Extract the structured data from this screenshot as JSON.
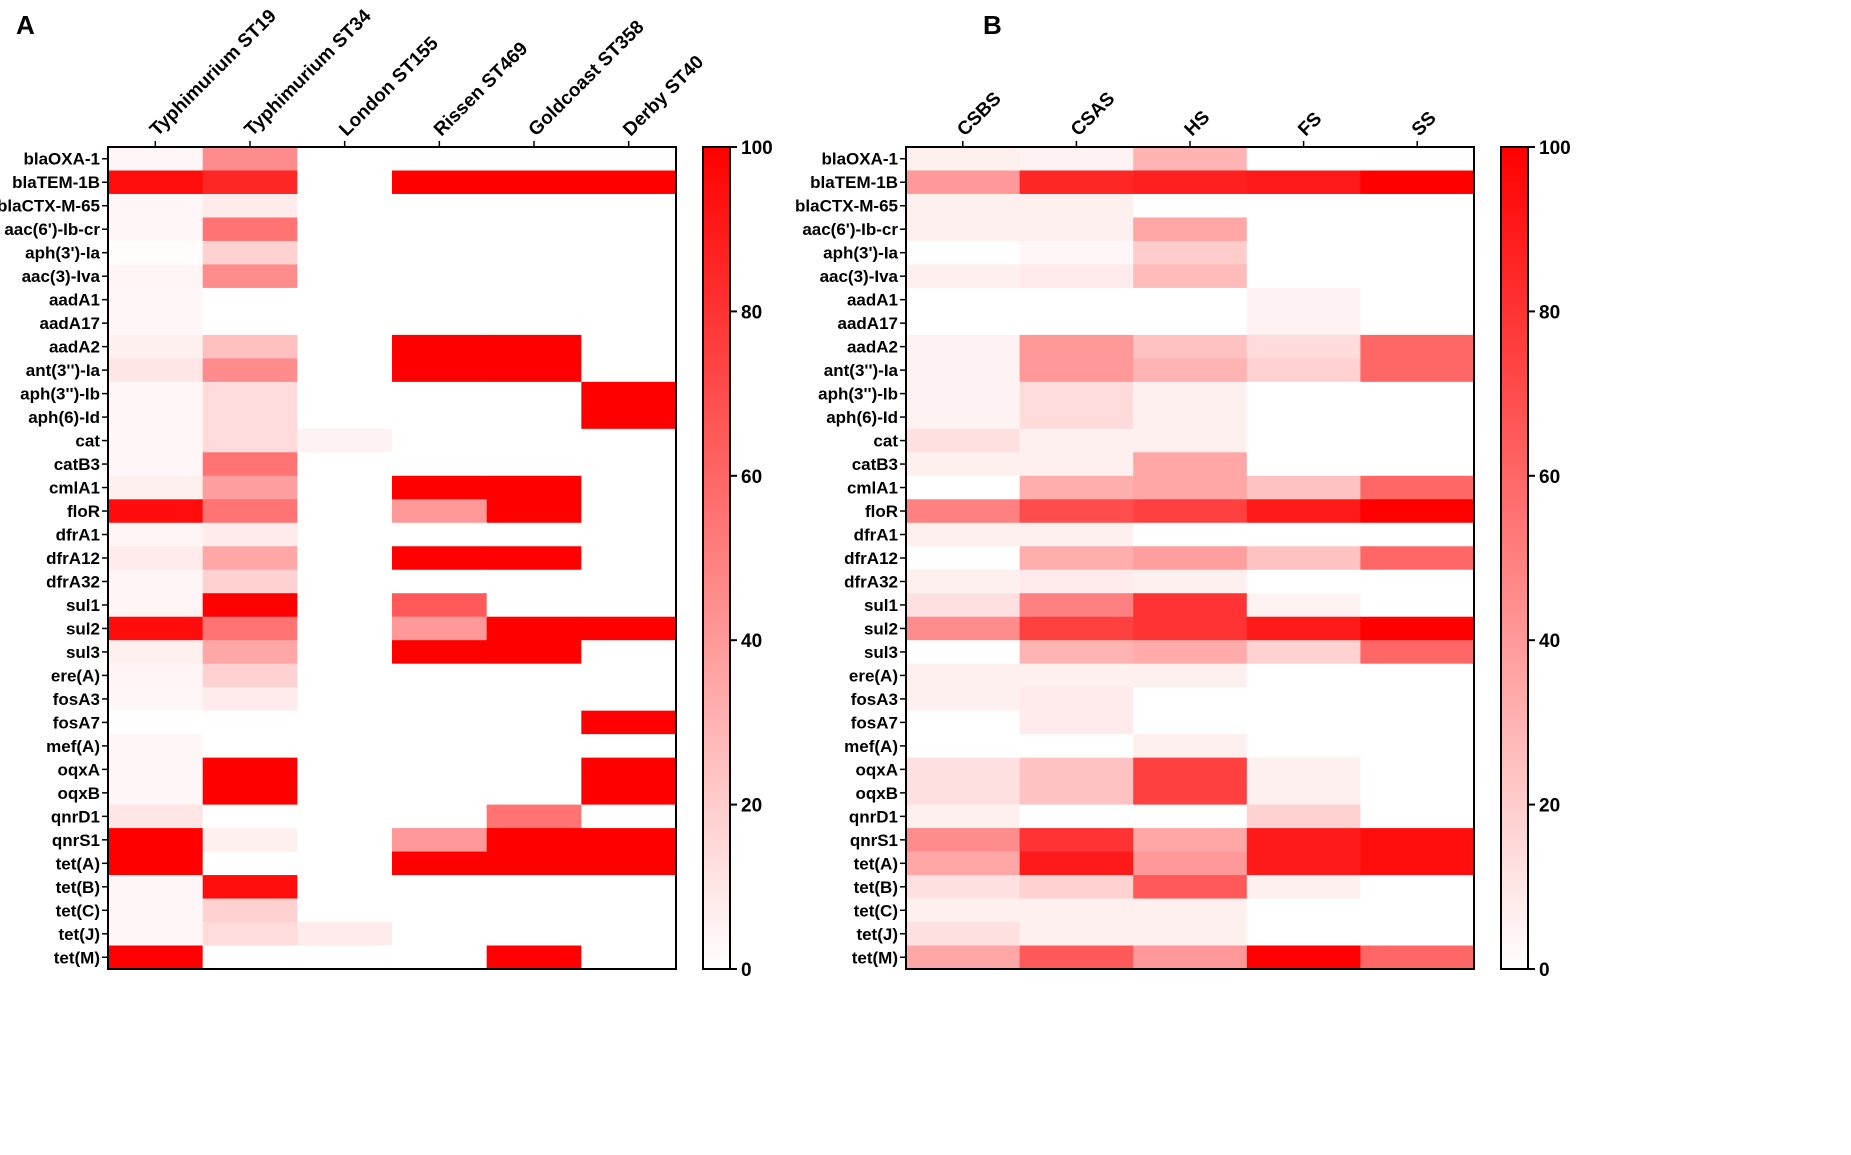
{
  "chart_data": [
    {
      "type": "heatmap",
      "panel_label": "A",
      "columns": [
        "Typhimurium ST19",
        "Typhimurium ST34",
        "London ST155",
        "Rissen ST469",
        "Goldcoast ST358",
        "Derby ST40"
      ],
      "rows": [
        "blaOXA-1",
        "blaTEM-1B",
        "blaCTX-M-65",
        "aac(6')-Ib-cr",
        "aph(3')-Ia",
        "aac(3)-Iva",
        "aadA1",
        "aadA17",
        "aadA2",
        "ant(3'')-Ia",
        "aph(3'')-Ib",
        "aph(6)-Id",
        "cat",
        "catB3",
        "cmlA1",
        "floR",
        "dfrA1",
        "dfrA12",
        "dfrA32",
        "sul1",
        "sul2",
        "sul3",
        "ere(A)",
        "fosA3",
        "fosA7",
        "mef(A)",
        "oqxA",
        "oqxB",
        "qnrD1",
        "qnrS1",
        "tet(A)",
        "tet(B)",
        "tet(C)",
        "tet(J)",
        "tet(M)"
      ],
      "values": [
        [
          3,
          45,
          0,
          0,
          0,
          0
        ],
        [
          95,
          85,
          0,
          100,
          100,
          100
        ],
        [
          3,
          8,
          0,
          0,
          0,
          0
        ],
        [
          3,
          55,
          0,
          0,
          0,
          0
        ],
        [
          1,
          18,
          0,
          0,
          0,
          0
        ],
        [
          4,
          45,
          0,
          0,
          0,
          0
        ],
        [
          3,
          0,
          0,
          0,
          0,
          0
        ],
        [
          3,
          0,
          0,
          0,
          0,
          0
        ],
        [
          6,
          25,
          0,
          100,
          100,
          0
        ],
        [
          10,
          45,
          0,
          100,
          100,
          0
        ],
        [
          3,
          14,
          0,
          0,
          0,
          100
        ],
        [
          3,
          14,
          0,
          0,
          0,
          100
        ],
        [
          3,
          14,
          5,
          0,
          0,
          0
        ],
        [
          3,
          55,
          0,
          0,
          0,
          0
        ],
        [
          6,
          38,
          0,
          100,
          100,
          0
        ],
        [
          95,
          55,
          0,
          40,
          100,
          0
        ],
        [
          4,
          8,
          0,
          0,
          0,
          0
        ],
        [
          8,
          35,
          0,
          100,
          100,
          0
        ],
        [
          4,
          18,
          0,
          0,
          0,
          0
        ],
        [
          4,
          100,
          0,
          65,
          0,
          0
        ],
        [
          95,
          55,
          0,
          40,
          100,
          100
        ],
        [
          6,
          35,
          0,
          100,
          100,
          0
        ],
        [
          4,
          18,
          0,
          0,
          0,
          0
        ],
        [
          3,
          8,
          0,
          0,
          0,
          0
        ],
        [
          0,
          0,
          0,
          0,
          0,
          100
        ],
        [
          3,
          0,
          0,
          0,
          0,
          0
        ],
        [
          3,
          100,
          0,
          0,
          0,
          100
        ],
        [
          3,
          100,
          0,
          0,
          0,
          100
        ],
        [
          10,
          0,
          0,
          0,
          55,
          0
        ],
        [
          100,
          6,
          0,
          40,
          100,
          100
        ],
        [
          100,
          0,
          0,
          100,
          100,
          100
        ],
        [
          3,
          95,
          0,
          0,
          0,
          0
        ],
        [
          3,
          18,
          0,
          0,
          0,
          0
        ],
        [
          3,
          14,
          8,
          0,
          0,
          0
        ],
        [
          100,
          0,
          0,
          0,
          100,
          0
        ]
      ],
      "colorbar": {
        "min": 0,
        "max": 100,
        "ticks": [
          0,
          20,
          40,
          60,
          80,
          100
        ],
        "color_low": "#ffffff",
        "color_high": "#ff0000"
      }
    },
    {
      "type": "heatmap",
      "panel_label": "B",
      "columns": [
        "CSBS",
        "CSAS",
        "HS",
        "FS",
        "SS"
      ],
      "rows": [
        "blaOXA-1",
        "blaTEM-1B",
        "blaCTX-M-65",
        "aac(6')-Ib-cr",
        "aph(3')-Ia",
        "aac(3)-Iva",
        "aadA1",
        "aadA17",
        "aadA2",
        "ant(3'')-Ia",
        "aph(3'')-Ib",
        "aph(6)-Id",
        "cat",
        "catB3",
        "cmlA1",
        "floR",
        "dfrA1",
        "dfrA12",
        "dfrA32",
        "sul1",
        "sul2",
        "sul3",
        "ere(A)",
        "fosA3",
        "fosA7",
        "mef(A)",
        "oqxA",
        "oqxB",
        "qnrD1",
        "qnrS1",
        "tet(A)",
        "tet(B)",
        "tet(C)",
        "tet(J)",
        "tet(M)"
      ],
      "values": [
        [
          6,
          5,
          30,
          0,
          0
        ],
        [
          40,
          85,
          88,
          90,
          100
        ],
        [
          6,
          6,
          0,
          0,
          0
        ],
        [
          6,
          6,
          35,
          0,
          0
        ],
        [
          0,
          3,
          20,
          0,
          0
        ],
        [
          6,
          8,
          27,
          0,
          0
        ],
        [
          0,
          0,
          0,
          5,
          0
        ],
        [
          0,
          0,
          0,
          5,
          0
        ],
        [
          5,
          40,
          24,
          14,
          60
        ],
        [
          5,
          40,
          30,
          18,
          60
        ],
        [
          5,
          14,
          6,
          0,
          0
        ],
        [
          5,
          14,
          6,
          0,
          0
        ],
        [
          12,
          6,
          6,
          0,
          0
        ],
        [
          6,
          6,
          35,
          0,
          0
        ],
        [
          0,
          32,
          35,
          24,
          60
        ],
        [
          50,
          70,
          75,
          90,
          100
        ],
        [
          6,
          6,
          0,
          0,
          0
        ],
        [
          0,
          32,
          38,
          24,
          60
        ],
        [
          6,
          8,
          6,
          0,
          0
        ],
        [
          12,
          50,
          80,
          5,
          0
        ],
        [
          45,
          75,
          80,
          90,
          100
        ],
        [
          0,
          30,
          33,
          18,
          60
        ],
        [
          6,
          6,
          6,
          0,
          0
        ],
        [
          6,
          8,
          0,
          0,
          0
        ],
        [
          0,
          8,
          0,
          0,
          0
        ],
        [
          0,
          0,
          6,
          0,
          0
        ],
        [
          12,
          24,
          75,
          6,
          0
        ],
        [
          12,
          24,
          75,
          6,
          0
        ],
        [
          6,
          0,
          0,
          18,
          0
        ],
        [
          45,
          80,
          35,
          90,
          95
        ],
        [
          35,
          90,
          40,
          90,
          95
        ],
        [
          12,
          18,
          65,
          6,
          0
        ],
        [
          6,
          6,
          6,
          0,
          0
        ],
        [
          12,
          6,
          6,
          0,
          0
        ],
        [
          35,
          65,
          40,
          100,
          60
        ]
      ],
      "colorbar": {
        "min": 0,
        "max": 100,
        "ticks": [
          0,
          20,
          40,
          60,
          80,
          100
        ],
        "color_low": "#ffffff",
        "color_high": "#ff0000"
      }
    }
  ]
}
